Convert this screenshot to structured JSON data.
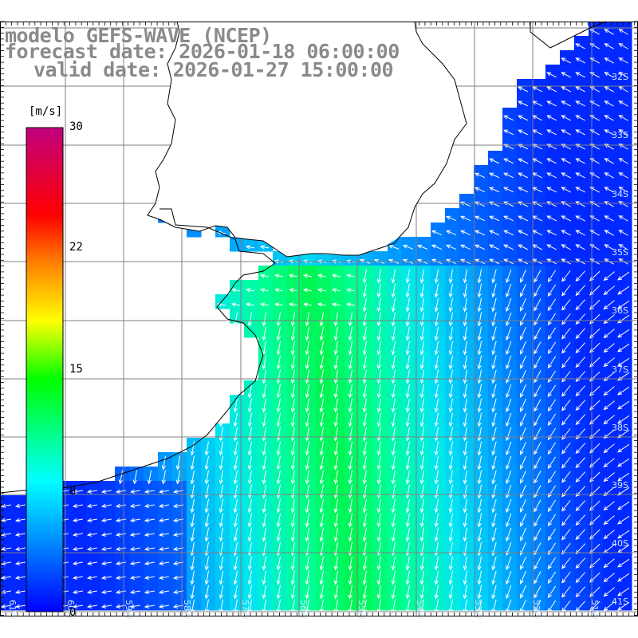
{
  "title": {
    "model": "modelo GEFS-WAVE (NCEP)",
    "forecast": "forecast date: 2026-01-18 06:00:00",
    "valid": "valid date: 2026-01-27 15:00:00"
  },
  "colorbar": {
    "unit": "[m/s]",
    "ticks": [
      "30",
      "22",
      "15",
      "8",
      "0"
    ],
    "tick_values": [
      30,
      22,
      15,
      8,
      0
    ],
    "colors": [
      "#0000ff",
      "#00bfff",
      "#00ffff",
      "#00ff00",
      "#ffff00",
      "#ff8000",
      "#ff0000",
      "#c0007f"
    ]
  },
  "map": {
    "land_color": "#ffffff",
    "lat_labels": [
      "32S",
      "33S",
      "34S",
      "35S",
      "36S",
      "37S",
      "38S",
      "39S",
      "40S",
      "41S"
    ],
    "lon_labels": [
      "61W",
      "60W",
      "59W",
      "58W",
      "57W",
      "56W",
      "55W",
      "54W",
      "53W",
      "52W",
      "51W"
    ]
  }
}
